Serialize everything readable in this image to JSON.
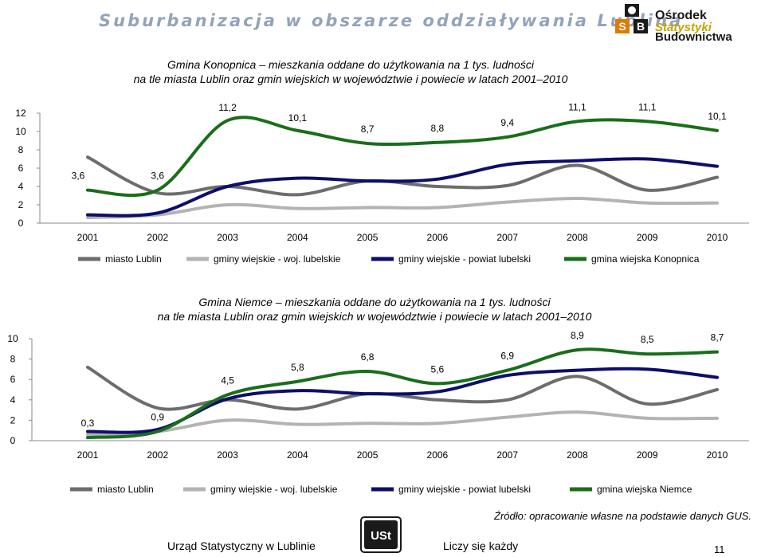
{
  "header": {
    "title": "Suburbanizacja w obszarze oddziaływania Lublina",
    "logo_lines": [
      "Ośrodek",
      "Statystyki",
      "Budownictwa"
    ],
    "logo_letters": "OSB"
  },
  "chart_data": [
    {
      "type": "line",
      "title_line1": "Gmina Konopnica – mieszkania oddane do użytkowania na 1 tys. ludności",
      "title_line2": "na tle miasta Lublin oraz gmin wiejskich w województwie i powiecie w latach 2001–2010",
      "categories": [
        "2001",
        "2002",
        "2003",
        "2004",
        "2005",
        "2006",
        "2007",
        "2008",
        "2009",
        "2010"
      ],
      "ylim": [
        0,
        12
      ],
      "yticks": [
        0,
        2,
        4,
        6,
        8,
        10,
        12
      ],
      "grid": false,
      "legend": "bottom",
      "series": [
        {
          "name": "miasto Lublin",
          "color": "#6d6d6d",
          "values": [
            7.2,
            3.3,
            4.0,
            3.1,
            4.6,
            4.0,
            4.1,
            6.3,
            3.6,
            5.0
          ]
        },
        {
          "name": "gminy wiejskie - woj. lubelskie",
          "color": "#b3b3b3",
          "values": [
            0.6,
            0.9,
            2.0,
            1.6,
            1.7,
            1.7,
            2.3,
            2.7,
            2.2,
            2.2
          ]
        },
        {
          "name": "gminy wiejskie - powiat lubelski",
          "color": "#0d0d6b",
          "values": [
            0.9,
            1.1,
            4.0,
            4.9,
            4.6,
            4.8,
            6.4,
            6.8,
            7.0,
            6.2
          ]
        },
        {
          "name": "gmina wiejska Konopnica",
          "color": "#1a6e1a",
          "values": [
            3.6,
            3.6,
            11.2,
            10.1,
            8.7,
            8.8,
            9.4,
            11.1,
            11.1,
            10.1
          ],
          "labels": [
            "3,6",
            "3,6",
            "11,2",
            "10,1",
            "8,7",
            "8,8",
            "9,4",
            "11,1",
            "11,1",
            "10,1"
          ]
        }
      ]
    },
    {
      "type": "line",
      "title_line1": "Gmina Niemce – mieszkania oddane do użytkowania na 1 tys. ludności",
      "title_line2": "na tle miasta Lublin oraz gmin wiejskich w województwie i powiecie w latach 2001–2010",
      "categories": [
        "2001",
        "2002",
        "2003",
        "2004",
        "2005",
        "2006",
        "2007",
        "2008",
        "2009",
        "2010"
      ],
      "ylim": [
        0,
        10
      ],
      "yticks": [
        0,
        2,
        4,
        6,
        8,
        10
      ],
      "grid": false,
      "legend": "bottom",
      "series": [
        {
          "name": "miasto Lublin",
          "color": "#6d6d6d",
          "values": [
            7.2,
            3.2,
            4.0,
            3.1,
            4.6,
            4.0,
            4.0,
            6.3,
            3.6,
            5.0
          ]
        },
        {
          "name": "gminy wiejskie - woj. lubelskie",
          "color": "#b3b3b3",
          "values": [
            0.6,
            0.9,
            2.0,
            1.6,
            1.7,
            1.7,
            2.3,
            2.8,
            2.2,
            2.2
          ]
        },
        {
          "name": "gminy wiejskie - powiat lubelski",
          "color": "#0d0d6b",
          "values": [
            0.9,
            1.1,
            4.1,
            4.9,
            4.6,
            4.8,
            6.4,
            6.9,
            7.0,
            6.2
          ]
        },
        {
          "name": "gmina wiejska Niemce",
          "color": "#1a6e1a",
          "values": [
            0.3,
            0.9,
            4.5,
            5.8,
            6.8,
            5.6,
            6.9,
            8.9,
            8.5,
            8.7
          ],
          "labels": [
            "0,3",
            "0,9",
            "4,5",
            "5,8",
            "6,8",
            "5,6",
            "6,9",
            "8,9",
            "8,5",
            "8,7"
          ]
        }
      ]
    }
  ],
  "footer": {
    "source": "Źródło: opracowanie własne na podstawie danych GUS.",
    "office": "Urząd Statystyczny w Lublinie",
    "slogan": "Liczy się każdy",
    "page": "11",
    "ustat_logo": "US tat"
  }
}
